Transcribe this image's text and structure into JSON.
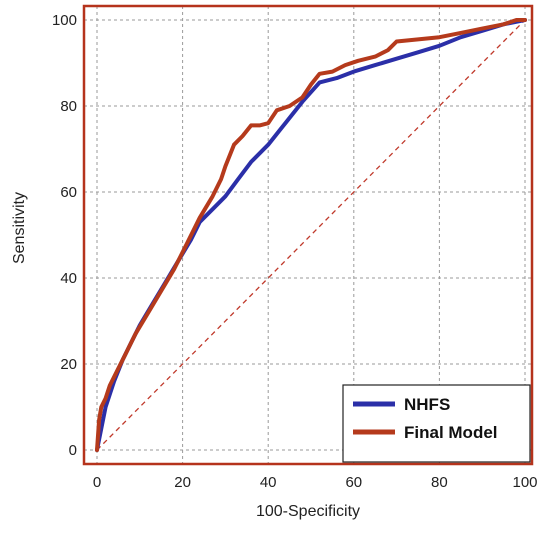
{
  "chart_data": {
    "type": "line",
    "title": "",
    "xlabel": "100-Specificity",
    "ylabel": "Sensitivity",
    "xlim": [
      0,
      100
    ],
    "ylim": [
      0,
      100
    ],
    "xticks": [
      "0",
      "20",
      "40",
      "60",
      "80",
      "100"
    ],
    "yticks": [
      "0",
      "20",
      "40",
      "60",
      "80",
      "100"
    ],
    "grid": true,
    "legend_position": "bottom-right",
    "frame_color": "#b5331c",
    "reference_line": {
      "x": [
        0,
        100
      ],
      "y": [
        0,
        100
      ],
      "color": "#c0392b",
      "style": "dashed"
    },
    "series": [
      {
        "name": "NHFS",
        "color": "#2b2fa8",
        "x": [
          0,
          1,
          2,
          4,
          6,
          8,
          10,
          13,
          16,
          19,
          22,
          24,
          27,
          30,
          33,
          36,
          40,
          44,
          48,
          52,
          56,
          60,
          65,
          70,
          75,
          80,
          85,
          90,
          95,
          100
        ],
        "y": [
          0,
          5,
          10,
          16,
          21,
          25,
          29,
          34,
          39,
          44,
          49,
          53,
          56,
          59,
          63,
          67,
          71,
          76,
          81,
          85.5,
          86.5,
          88,
          89.5,
          91,
          92.5,
          94,
          96,
          97.5,
          99,
          100
        ]
      },
      {
        "name": "Final Model",
        "color": "#b53a1c",
        "x": [
          0,
          0.5,
          1,
          2,
          3,
          5,
          7,
          9,
          12,
          15,
          18,
          21,
          24,
          27,
          29,
          30,
          32,
          34,
          36,
          38,
          40,
          42,
          45,
          48,
          50,
          52,
          55,
          58,
          61,
          65,
          68,
          70,
          75,
          80,
          85,
          90,
          95,
          98,
          100
        ],
        "y": [
          0,
          7,
          10,
          12,
          15,
          19,
          23,
          27,
          32,
          37,
          42,
          48,
          54,
          59,
          63,
          66,
          71,
          73,
          75.5,
          75.5,
          76,
          79,
          80,
          82,
          85,
          87.5,
          88,
          89.5,
          90.5,
          91.5,
          93,
          95,
          95.5,
          96,
          97,
          98,
          99,
          100,
          100
        ]
      }
    ]
  }
}
